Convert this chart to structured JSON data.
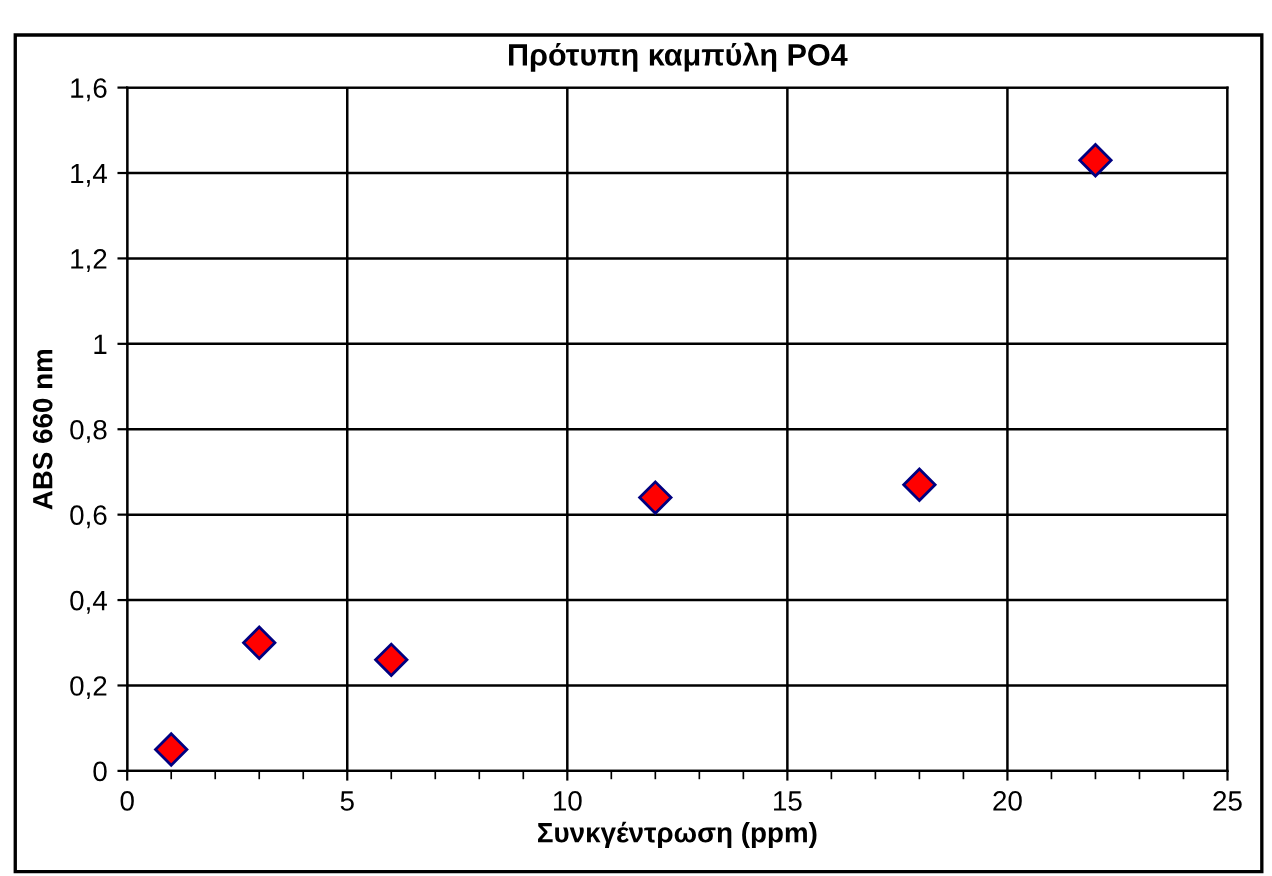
{
  "chart_data": {
    "type": "scatter",
    "title": "Πρότυπη καμπύλη PO4",
    "xlabel": "Συνκγέντρωση (ppm)",
    "ylabel": "ABS 660 nm",
    "x": [
      1,
      3,
      6,
      12,
      18,
      22
    ],
    "series": [
      {
        "color": "#ff0000",
        "values": [
          0.05,
          0.3,
          0.26,
          0.64,
          0.67,
          1.43
        ]
      }
    ],
    "marker": "diamond",
    "grid": true,
    "xlim": [
      0,
      25
    ],
    "xticks": [
      0,
      5,
      10,
      15,
      20,
      25
    ],
    "ylim": [
      0,
      1.6
    ],
    "yticks": [
      0,
      {
        "value": 0.2,
        "label": "0,2"
      },
      {
        "value": 0.4,
        "label": "0,4"
      },
      {
        "value": 0.6,
        "label": "0,6"
      },
      {
        "value": 0.8,
        "label": "0,8"
      },
      1,
      {
        "value": 1.2,
        "label": "1,2"
      },
      {
        "value": 1.4,
        "label": "1,4"
      },
      {
        "value": 1.6,
        "label": "1,6"
      }
    ]
  }
}
